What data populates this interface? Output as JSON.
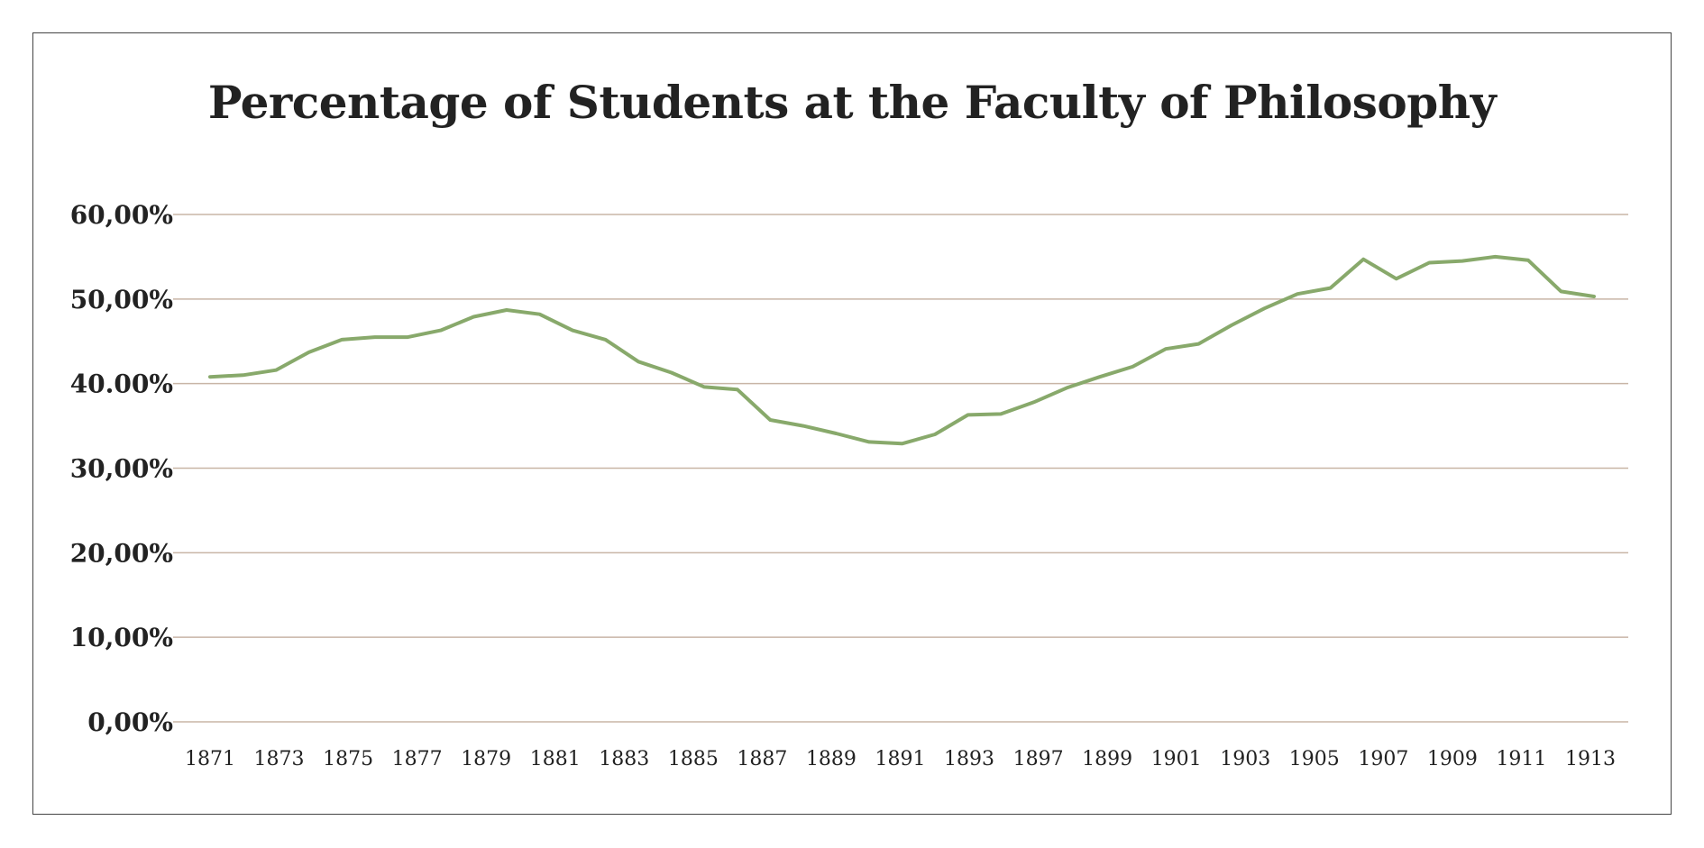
{
  "chart_data": {
    "type": "line",
    "title": "Percentage of Students at the Faculty of Philosophy",
    "xlabel": "",
    "ylabel": "",
    "ylim": [
      0,
      60
    ],
    "y_ticks": [
      {
        "value": 0,
        "label": "0,00%"
      },
      {
        "value": 10,
        "label": "10,00%"
      },
      {
        "value": 20,
        "label": "20,00%"
      },
      {
        "value": 30,
        "label": "30,00%"
      },
      {
        "value": 40,
        "label": "40.00%"
      },
      {
        "value": 50,
        "label": "50,00%"
      },
      {
        "value": 60,
        "label": "60,00%"
      }
    ],
    "x_tick_labels": [
      "1871",
      "1873",
      "1875",
      "1877",
      "1879",
      "1881",
      "1883",
      "1885",
      "1887",
      "1889",
      "1891",
      "1893",
      "1897",
      "1899",
      "1901",
      "1903",
      "1905",
      "1907",
      "1909",
      "1911",
      "1913"
    ],
    "series": [
      {
        "color": "#88a96b",
        "values": [
          40.8,
          41.0,
          41.6,
          43.7,
          45.2,
          45.5,
          45.5,
          46.3,
          47.9,
          48.7,
          48.2,
          46.3,
          45.2,
          42.6,
          41.3,
          39.6,
          39.3,
          35.7,
          35.0,
          34.1,
          33.1,
          32.9,
          34.0,
          36.3,
          36.4,
          37.8,
          39.5,
          40.8,
          42.0,
          44.1,
          44.7,
          46.9,
          48.9,
          50.6,
          51.3,
          54.7,
          52.4,
          54.3,
          54.5,
          55.0,
          54.6,
          50.9,
          50.3
        ]
      }
    ],
    "grid": true,
    "grid_color": "#c8b5a6",
    "legend": "none"
  }
}
